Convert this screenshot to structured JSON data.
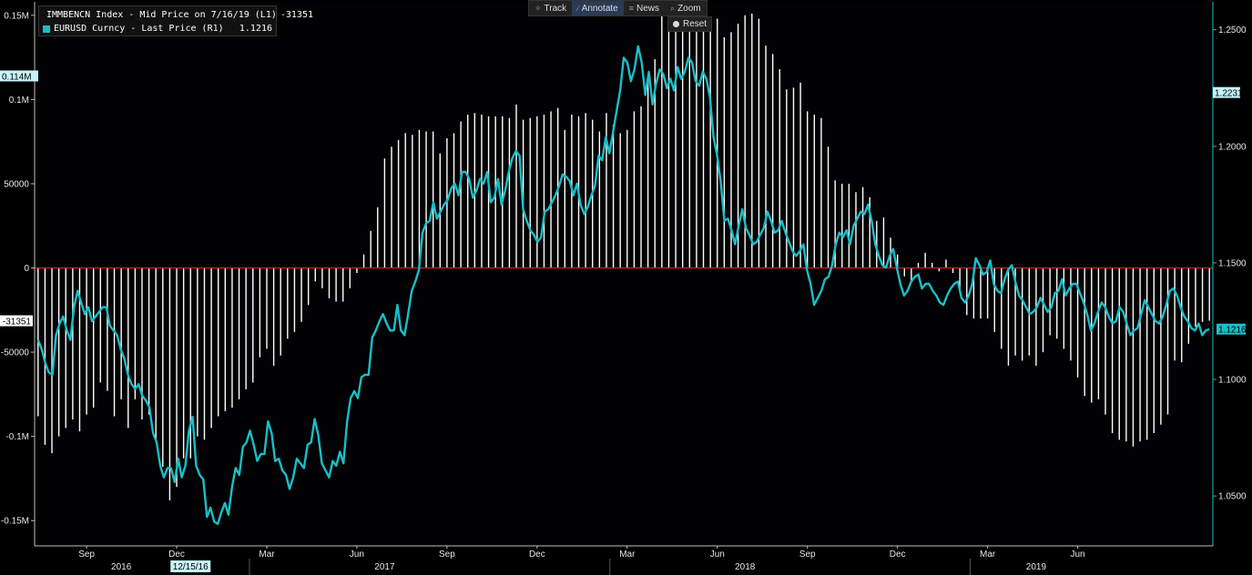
{
  "toolbar": {
    "track_label": "Track",
    "annotate_label": "Annotate",
    "news_label": "News",
    "zoom_label": "Zoom",
    "reset_label": "Reset"
  },
  "legend": {
    "series1_label": "IMMBENCN Index - Mid Price on 7/16/19 (L1)",
    "series1_value": "-31351",
    "series2_label": "EURUSD Curncy - Last Price (R1)",
    "series2_value": "1.1216"
  },
  "colors": {
    "background": "#000000",
    "bars": "#ffffff",
    "line": "#19bfc8",
    "zero_line": "#cc1f1f",
    "axis": "#19bfc8"
  },
  "chart_data": {
    "type": "bar",
    "left_axis": {
      "ylim": [
        -0.165,
        0.158
      ],
      "ticks": [
        0.15,
        0.1,
        0.05,
        0,
        -0.05,
        -0.1,
        -0.15
      ],
      "tick_labels": [
        "0.15M",
        "0.1M",
        "50000",
        "0",
        "-50000",
        "-0.1M",
        "-0.15M"
      ],
      "flag_labels": [
        "0.114M",
        "-31351"
      ],
      "flag_values": [
        0.114,
        -0.031351
      ]
    },
    "right_axis": {
      "ylim": [
        1.0286,
        1.262
      ],
      "ticks": [
        1.25,
        1.2,
        1.15,
        1.1,
        1.05
      ],
      "tick_labels": [
        "1.2500",
        "1.2000",
        "1.1500",
        "1.1000",
        "1.0500"
      ],
      "flag_labels": [
        "1.2231",
        "1.1216"
      ],
      "flag_values": [
        1.2231,
        1.1216
      ]
    },
    "x_axis": {
      "month_labels": [
        "Sep",
        "Dec",
        "Mar",
        "Jun",
        "Sep",
        "Dec",
        "Mar",
        "Jun",
        "Sep",
        "Dec",
        "Mar",
        "Jun"
      ],
      "month_index": [
        7,
        20,
        33,
        46,
        59,
        72,
        85,
        98,
        111,
        124,
        137,
        150
      ],
      "year_labels": [
        "2016",
        "2017",
        "2018",
        "2019"
      ],
      "year_index": [
        12,
        50,
        102,
        144
      ],
      "year_separators": [
        30.5,
        82.5,
        134.5
      ],
      "cursor_label": "12/15/16",
      "cursor_index": 22
    },
    "series": [
      {
        "name": "IMMBENCN Index - Mid Price on 7/16/19 (L1)",
        "type": "bar",
        "values": [
          -0.088,
          -0.105,
          -0.11,
          -0.1,
          -0.095,
          -0.09,
          -0.097,
          -0.087,
          -0.083,
          -0.068,
          -0.073,
          -0.088,
          -0.078,
          -0.095,
          -0.078,
          -0.09,
          -0.087,
          -0.103,
          -0.118,
          -0.138,
          -0.13,
          -0.113,
          -0.113,
          -0.1,
          -0.102,
          -0.095,
          -0.088,
          -0.085,
          -0.083,
          -0.078,
          -0.072,
          -0.068,
          -0.053,
          -0.048,
          -0.058,
          -0.052,
          -0.042,
          -0.038,
          -0.032,
          -0.022,
          -0.008,
          -0.012,
          -0.018,
          -0.02,
          -0.02,
          -0.012,
          -0.003,
          0.008,
          0.022,
          0.036,
          0.065,
          0.072,
          0.076,
          0.08,
          0.079,
          0.082,
          0.081,
          0.081,
          0.068,
          0.077,
          0.08,
          0.087,
          0.091,
          0.092,
          0.091,
          0.09,
          0.09,
          0.09,
          0.089,
          0.097,
          0.088,
          0.089,
          0.09,
          0.091,
          0.093,
          0.095,
          0.082,
          0.091,
          0.09,
          0.092,
          0.088,
          0.081,
          0.092,
          0.085,
          0.08,
          0.082,
          0.093,
          0.096,
          0.112,
          0.124,
          0.152,
          0.145,
          0.149,
          0.157,
          0.148,
          0.15,
          0.143,
          0.145,
          0.148,
          0.137,
          0.14,
          0.145,
          0.15,
          0.151,
          0.148,
          0.132,
          0.127,
          0.118,
          0.106,
          0.107,
          0.11,
          0.093,
          0.091,
          0.089,
          0.072,
          0.052,
          0.05,
          0.05,
          0.045,
          0.048,
          0.042,
          0.028,
          0.03,
          0.018,
          0.008,
          -0.005,
          -0.008,
          0.003,
          0.009,
          0.003,
          -0.002,
          0.005,
          -0.003,
          -0.015,
          -0.028,
          -0.03,
          -0.03,
          -0.03,
          -0.038,
          -0.048,
          -0.058,
          -0.052,
          -0.055,
          -0.052,
          -0.058,
          -0.05,
          -0.04,
          -0.042,
          -0.048,
          -0.055,
          -0.065,
          -0.076,
          -0.08,
          -0.078,
          -0.087,
          -0.098,
          -0.102,
          -0.103,
          -0.106,
          -0.103,
          -0.102,
          -0.098,
          -0.093,
          -0.087,
          -0.055,
          -0.056,
          -0.045,
          -0.035,
          -0.032,
          -0.031351
        ]
      },
      {
        "name": "EURUSD Curncy - Last Price (R1)",
        "type": "line",
        "values": [
          1.117,
          1.113,
          1.107,
          1.103,
          1.102,
          1.119,
          1.124,
          1.127,
          1.121,
          1.117,
          1.131,
          1.138,
          1.133,
          1.128,
          1.131,
          1.125,
          1.127,
          1.129,
          1.131,
          1.131,
          1.123,
          1.121,
          1.119,
          1.113,
          1.109,
          1.102,
          1.098,
          1.096,
          1.098,
          1.093,
          1.091,
          1.088,
          1.077,
          1.073,
          1.063,
          1.058,
          1.062,
          1.062,
          1.056,
          1.066,
          1.058,
          1.063,
          1.078,
          1.084,
          1.063,
          1.059,
          1.057,
          1.041,
          1.045,
          1.039,
          1.038,
          1.043,
          1.047,
          1.042,
          1.054,
          1.062,
          1.059,
          1.071,
          1.073,
          1.078,
          1.072,
          1.065,
          1.068,
          1.068,
          1.082,
          1.077,
          1.065,
          1.066,
          1.061,
          1.059,
          1.053,
          1.058,
          1.066,
          1.064,
          1.062,
          1.072,
          1.073,
          1.083,
          1.076,
          1.064,
          1.061,
          1.058,
          1.065,
          1.063,
          1.069,
          1.064,
          1.082,
          1.092,
          1.095,
          1.092,
          1.101,
          1.102,
          1.102,
          1.118,
          1.121,
          1.125,
          1.128,
          1.124,
          1.121,
          1.121,
          1.132,
          1.121,
          1.119,
          1.128,
          1.138,
          1.142,
          1.147,
          1.163,
          1.167,
          1.168,
          1.176,
          1.169,
          1.172,
          1.175,
          1.177,
          1.182,
          1.184,
          1.179,
          1.189,
          1.189,
          1.186,
          1.178,
          1.181,
          1.186,
          1.184,
          1.189,
          1.176,
          1.178,
          1.186,
          1.175,
          1.181,
          1.189,
          1.195,
          1.198,
          1.196,
          1.173,
          1.168,
          1.164,
          1.162,
          1.159,
          1.161,
          1.172,
          1.173,
          1.176,
          1.179,
          1.183,
          1.188,
          1.187,
          1.185,
          1.179,
          1.184,
          1.175,
          1.171,
          1.174,
          1.179,
          1.183,
          1.196,
          1.194,
          1.204,
          1.197,
          1.206,
          1.215,
          1.224,
          1.238,
          1.236,
          1.228,
          1.233,
          1.243,
          1.236,
          1.222,
          1.232,
          1.218,
          1.227,
          1.233,
          1.231,
          1.225,
          1.229,
          1.224,
          1.234,
          1.229,
          1.232,
          1.238,
          1.236,
          1.228,
          1.226,
          1.232,
          1.229,
          1.221,
          1.204,
          1.196,
          1.185,
          1.168,
          1.169,
          1.164,
          1.158,
          1.166,
          1.173,
          1.165,
          1.162,
          1.158,
          1.159,
          1.162,
          1.165,
          1.172,
          1.168,
          1.163,
          1.164,
          1.168,
          1.163,
          1.159,
          1.155,
          1.153,
          1.155,
          1.158,
          1.147,
          1.141,
          1.132,
          1.135,
          1.138,
          1.143,
          1.144,
          1.149,
          1.158,
          1.163,
          1.161,
          1.164,
          1.158,
          1.166,
          1.169,
          1.172,
          1.171,
          1.175,
          1.168,
          1.158,
          1.153,
          1.149,
          1.148,
          1.153,
          1.156,
          1.148,
          1.141,
          1.136,
          1.138,
          1.142,
          1.144,
          1.145,
          1.139,
          1.141,
          1.141,
          1.138,
          1.136,
          1.133,
          1.132,
          1.136,
          1.139,
          1.141,
          1.142,
          1.135,
          1.133,
          1.136,
          1.141,
          1.152,
          1.149,
          1.145,
          1.146,
          1.151,
          1.141,
          1.138,
          1.137,
          1.143,
          1.147,
          1.149,
          1.142,
          1.136,
          1.134,
          1.131,
          1.128,
          1.129,
          1.131,
          1.135,
          1.132,
          1.129,
          1.131,
          1.137,
          1.138,
          1.143,
          1.136,
          1.139,
          1.141,
          1.141,
          1.137,
          1.133,
          1.128,
          1.121,
          1.124,
          1.129,
          1.133,
          1.131,
          1.127,
          1.124,
          1.125,
          1.131,
          1.129,
          1.124,
          1.119,
          1.121,
          1.122,
          1.128,
          1.134,
          1.131,
          1.128,
          1.125,
          1.124,
          1.127,
          1.132,
          1.138,
          1.139,
          1.136,
          1.131,
          1.127,
          1.125,
          1.122,
          1.121,
          1.124,
          1.119,
          1.121,
          1.1216
        ]
      }
    ]
  }
}
